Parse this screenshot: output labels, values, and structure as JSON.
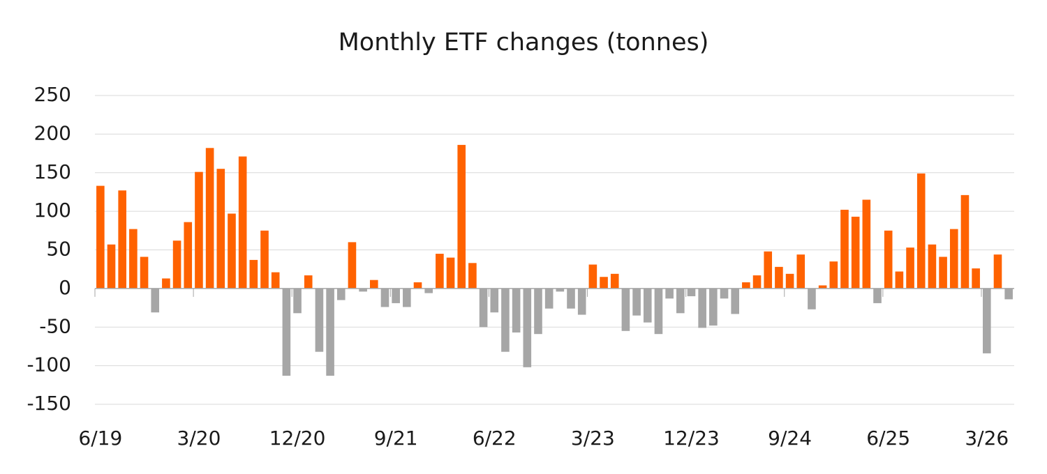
{
  "chart_data": {
    "type": "bar",
    "title": "Monthly ETF changes (tonnes)",
    "categories": [
      "6/19",
      null,
      null,
      null,
      null,
      null,
      null,
      null,
      null,
      "3/20",
      null,
      null,
      null,
      null,
      null,
      null,
      null,
      null,
      "12/20",
      null,
      null,
      null,
      null,
      null,
      null,
      null,
      null,
      "9/21",
      null,
      null,
      null,
      null,
      null,
      null,
      null,
      null,
      "6/22",
      null,
      null,
      null,
      null,
      null,
      null,
      null,
      null,
      "3/23",
      null,
      null,
      null,
      null,
      null,
      null,
      null,
      null,
      "12/23",
      null,
      null,
      null,
      null,
      null,
      null,
      null,
      null,
      "9/24",
      null,
      null,
      null,
      null,
      null,
      null,
      null,
      null,
      "6/25",
      null,
      null,
      null,
      null,
      null,
      null,
      null,
      null,
      "3/26",
      null,
      null
    ],
    "values": [
      133,
      57,
      127,
      77,
      41,
      -31,
      13,
      62,
      86,
      151,
      182,
      155,
      97,
      171,
      37,
      75,
      21,
      -113,
      -32,
      17,
      -82,
      -113,
      -15,
      60,
      -4,
      11,
      -24,
      -19,
      -24,
      8,
      -6,
      45,
      40,
      186,
      33,
      -50,
      -31,
      -82,
      -57,
      -102,
      -59,
      -26,
      -4,
      -26,
      -34,
      31,
      15,
      19,
      -55,
      -35,
      -44,
      -59,
      -13,
      -32,
      -10,
      -51,
      -48,
      -13,
      -33,
      8,
      17,
      48,
      28,
      19,
      44,
      -27,
      4,
      35,
      102,
      93,
      115,
      -19,
      75,
      22,
      53,
      149,
      57,
      41,
      77,
      121,
      26,
      -84,
      44,
      -14
    ],
    "positive_color": "#ff6200",
    "negative_color": "#a6a6a6",
    "ylim": [
      -150,
      250
    ],
    "yticks": [
      -150,
      -100,
      -50,
      0,
      50,
      100,
      150,
      200,
      250
    ],
    "grid": true
  }
}
